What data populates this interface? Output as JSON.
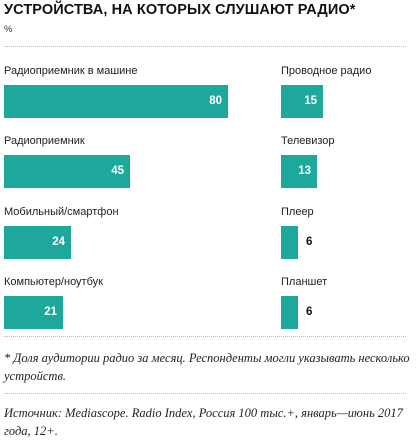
{
  "chart_data": {
    "type": "bar",
    "title": "УСТРОЙСТВА, НА КОТОРЫХ СЛУШАЮТ РАДИО*",
    "unit": "%",
    "panels": [
      {
        "categories": [
          "Радиоприемник в машине",
          "Радиоприемник",
          "Мобильный/смартфон",
          "Компьютер/ноутбук"
        ],
        "values": [
          80,
          45,
          24,
          21
        ]
      },
      {
        "categories": [
          "Проводное радио",
          "Телевизор",
          "Плеер",
          "Планшет"
        ],
        "values": [
          15,
          13,
          6,
          6
        ]
      }
    ],
    "bar_color": "#1ea89c",
    "grid": false
  },
  "footnote": "* Доля аудитории радио за месяц. Респонденты могли указывать несколько устройств.",
  "source": "Источник: Mediascope. Radio Index, Россия 100 тыс.+, январь—июнь 2017 года, 12+."
}
